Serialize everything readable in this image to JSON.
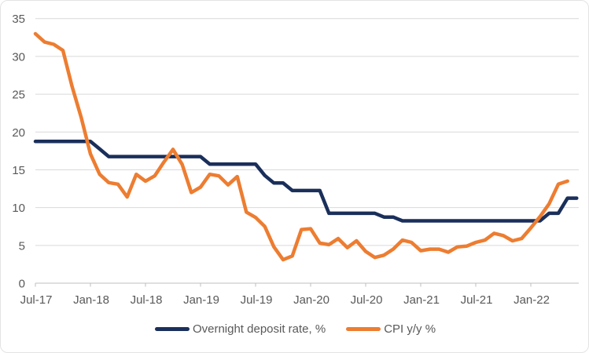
{
  "chart_data": {
    "type": "line",
    "title": "",
    "x_start_label": "Jul-17",
    "x_frequency": "monthly",
    "x_tick_labels": [
      "Jul-17",
      "Jan-18",
      "Jul-18",
      "Jan-19",
      "Jul-19",
      "Jan-20",
      "Jul-20",
      "Jan-21",
      "Jul-21",
      "Jan-22"
    ],
    "x_tick_month_indices": [
      0,
      6,
      12,
      18,
      24,
      30,
      36,
      42,
      48,
      54
    ],
    "y_tick_labels": [
      "0",
      "5",
      "10",
      "15",
      "20",
      "25",
      "30",
      "35"
    ],
    "y_ticks": [
      0,
      5,
      10,
      15,
      20,
      25,
      30,
      35
    ],
    "ylim": [
      0,
      35
    ],
    "grid": "horizontal",
    "legend_position": "bottom",
    "series": [
      {
        "name": "Overnight deposit rate, %",
        "color": "#1A2F5A",
        "values": [
          18.75,
          18.75,
          18.75,
          18.75,
          18.75,
          18.75,
          18.75,
          17.75,
          16.75,
          16.75,
          16.75,
          16.75,
          16.75,
          16.75,
          16.75,
          16.75,
          16.75,
          16.75,
          16.75,
          15.75,
          15.75,
          15.75,
          15.75,
          15.75,
          15.75,
          14.25,
          13.25,
          13.25,
          12.25,
          12.25,
          12.25,
          12.25,
          9.25,
          9.25,
          9.25,
          9.25,
          9.25,
          9.25,
          8.75,
          8.75,
          8.25,
          8.25,
          8.25,
          8.25,
          8.25,
          8.25,
          8.25,
          8.25,
          8.25,
          8.25,
          8.25,
          8.25,
          8.25,
          8.25,
          8.25,
          8.25,
          9.25,
          9.25,
          11.25,
          11.25
        ]
      },
      {
        "name": "CPI y/y %",
        "color": "#ED7D31",
        "values": [
          33.0,
          31.9,
          31.6,
          30.8,
          26.0,
          21.9,
          17.1,
          14.4,
          13.3,
          13.1,
          11.4,
          14.4,
          13.5,
          14.2,
          16.0,
          17.7,
          15.7,
          12.0,
          12.7,
          14.4,
          14.2,
          13.0,
          14.1,
          9.4,
          8.7,
          7.5,
          4.8,
          3.1,
          3.6,
          7.1,
          7.2,
          5.3,
          5.1,
          5.9,
          4.7,
          5.6,
          4.2,
          3.4,
          3.7,
          4.5,
          5.7,
          5.4,
          4.3,
          4.5,
          4.5,
          4.1,
          4.8,
          4.9,
          5.4,
          5.7,
          6.6,
          6.3,
          5.6,
          5.9,
          7.3,
          8.8,
          10.5,
          13.1,
          13.5
        ]
      }
    ],
    "colors": {
      "gridline": "#D9D9D9",
      "axis_line": "#BFBFBF",
      "axis_text": "#595959"
    }
  }
}
